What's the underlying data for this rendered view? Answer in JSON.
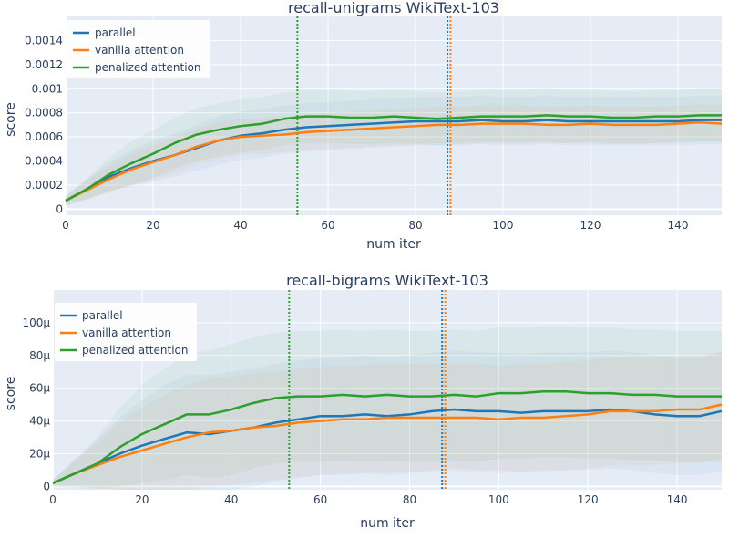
{
  "chart_data": [
    {
      "type": "line",
      "title": "recall-unigrams WikiText-103",
      "xlabel": "num iter",
      "ylabel": "score",
      "xlim": [
        0,
        150
      ],
      "ylim": [
        -5e-05,
        0.0016
      ],
      "xticks": [
        0,
        20,
        40,
        60,
        80,
        100,
        120,
        140
      ],
      "xtick_labels": [
        "0",
        "20",
        "40",
        "60",
        "80",
        "100",
        "120",
        "140"
      ],
      "yticks": [
        0,
        0.0002,
        0.0004,
        0.0006,
        0.0008,
        0.001,
        0.0012,
        0.0014
      ],
      "ytick_labels": [
        "0",
        "0.0002",
        "0.0004",
        "0.0006",
        "0.0008",
        "0.001",
        "0.0012",
        "0.0014"
      ],
      "grid": true,
      "legend": {
        "position": "top-left",
        "entries": [
          "parallel",
          "vanilla attention",
          "penalized attention"
        ]
      },
      "series": [
        {
          "name": "parallel",
          "color": "#1f77b4",
          "x": [
            0,
            5,
            10,
            15,
            20,
            25,
            30,
            35,
            40,
            45,
            50,
            55,
            60,
            65,
            70,
            75,
            80,
            85,
            90,
            95,
            100,
            105,
            110,
            115,
            120,
            125,
            130,
            135,
            140,
            145,
            150
          ],
          "y": [
            7e-05,
            0.00017,
            0.00027,
            0.00034,
            0.0004,
            0.00045,
            0.00051,
            0.00057,
            0.00061,
            0.00063,
            0.00066,
            0.00068,
            0.00069,
            0.0007,
            0.00071,
            0.00072,
            0.00073,
            0.00073,
            0.00073,
            0.00074,
            0.00073,
            0.00073,
            0.00074,
            0.00073,
            0.00073,
            0.00073,
            0.00073,
            0.00073,
            0.00073,
            0.00074,
            0.00074
          ],
          "band": [
            4e-05,
            8e-05,
            0.00012,
            0.00015,
            0.00017,
            0.00018,
            0.00019,
            0.0002,
            0.0002,
            0.0002,
            0.0002,
            0.0002,
            0.0002,
            0.0002,
            0.0002,
            0.0002,
            0.0002,
            0.0002,
            0.0002,
            0.0002,
            0.0002,
            0.0002,
            0.0002,
            0.0002,
            0.0002,
            0.0002,
            0.0002,
            0.0002,
            0.0002,
            0.0002,
            0.0002
          ]
        },
        {
          "name": "vanilla attention",
          "color": "#ff7f0e",
          "x": [
            0,
            5,
            10,
            15,
            20,
            25,
            30,
            35,
            40,
            45,
            50,
            55,
            60,
            65,
            70,
            75,
            80,
            85,
            90,
            95,
            100,
            105,
            110,
            115,
            120,
            125,
            130,
            135,
            140,
            145,
            150
          ],
          "y": [
            7e-05,
            0.00016,
            0.00025,
            0.00033,
            0.00039,
            0.00045,
            0.00052,
            0.00057,
            0.0006,
            0.00061,
            0.00062,
            0.00064,
            0.00065,
            0.00066,
            0.00067,
            0.00068,
            0.00069,
            0.0007,
            0.0007,
            0.00071,
            0.00071,
            0.00071,
            0.0007,
            0.0007,
            0.00071,
            0.0007,
            0.0007,
            0.0007,
            0.00071,
            0.00072,
            0.00071
          ],
          "band": [
            4e-05,
            8e-05,
            0.00011,
            0.00013,
            0.00014,
            0.00015,
            0.00015,
            0.00015,
            0.00015,
            0.00015,
            0.00015,
            0.00015,
            0.00015,
            0.00015,
            0.00015,
            0.00015,
            0.00015,
            0.00015,
            0.00015,
            0.00015,
            0.00015,
            0.00015,
            0.00015,
            0.00015,
            0.00015,
            0.00015,
            0.00015,
            0.00015,
            0.00015,
            0.00015,
            0.00015
          ]
        },
        {
          "name": "penalized attention",
          "color": "#2ca02c",
          "x": [
            0,
            5,
            10,
            15,
            20,
            25,
            30,
            35,
            40,
            45,
            50,
            55,
            60,
            65,
            70,
            75,
            80,
            85,
            90,
            95,
            100,
            105,
            110,
            115,
            120,
            125,
            130,
            135,
            140,
            145,
            150
          ],
          "y": [
            7e-05,
            0.00017,
            0.00029,
            0.00038,
            0.00046,
            0.00055,
            0.00062,
            0.00066,
            0.00069,
            0.00071,
            0.00075,
            0.00077,
            0.00077,
            0.00076,
            0.00076,
            0.00077,
            0.00076,
            0.00075,
            0.00076,
            0.00077,
            0.00077,
            0.00077,
            0.00078,
            0.00077,
            0.00077,
            0.00076,
            0.00076,
            0.00077,
            0.00077,
            0.00078,
            0.00078
          ],
          "band": [
            4e-05,
            9e-05,
            0.00014,
            0.00018,
            0.0002,
            0.00021,
            0.00022,
            0.00022,
            0.00022,
            0.00022,
            0.00022,
            0.00022,
            0.00022,
            0.00022,
            0.00022,
            0.00022,
            0.00022,
            0.00022,
            0.00022,
            0.00022,
            0.00022,
            0.00022,
            0.00022,
            0.00022,
            0.00022,
            0.00022,
            0.00022,
            0.00022,
            0.00022,
            0.00022,
            0.00022
          ]
        }
      ],
      "vlines": [
        {
          "x": 53,
          "color": "#2ca02c"
        },
        {
          "x": 87.3,
          "color": "#1f77b4"
        },
        {
          "x": 88,
          "color": "#ff7f0e"
        }
      ]
    },
    {
      "type": "line",
      "title": "recall-bigrams WikiText-103",
      "xlabel": "num iter",
      "ylabel": "score",
      "xlim": [
        0,
        150
      ],
      "ylim": [
        -2e-06,
        0.00012
      ],
      "xticks": [
        0,
        20,
        40,
        60,
        80,
        100,
        120,
        140
      ],
      "xtick_labels": [
        "0",
        "20",
        "40",
        "60",
        "80",
        "100",
        "120",
        "140"
      ],
      "yticks": [
        0,
        2e-05,
        4e-05,
        6e-05,
        8e-05,
        0.0001
      ],
      "ytick_labels": [
        "0",
        "20μ",
        "40μ",
        "60μ",
        "80μ",
        "100μ"
      ],
      "grid": true,
      "legend": {
        "position": "top-left",
        "entries": [
          "parallel",
          "vanilla attention",
          "penalized attention"
        ]
      },
      "series": [
        {
          "name": "parallel",
          "color": "#1f77b4",
          "x": [
            0,
            5,
            10,
            15,
            20,
            25,
            30,
            35,
            40,
            45,
            50,
            55,
            60,
            65,
            70,
            75,
            80,
            85,
            90,
            95,
            100,
            105,
            110,
            115,
            120,
            125,
            130,
            135,
            140,
            145,
            150
          ],
          "y": [
            2e-06,
            8e-06,
            1.4e-05,
            2e-05,
            2.5e-05,
            2.9e-05,
            3.3e-05,
            3.2e-05,
            3.4e-05,
            3.6e-05,
            3.9e-05,
            4.1e-05,
            4.3e-05,
            4.3e-05,
            4.4e-05,
            4.3e-05,
            4.4e-05,
            4.6e-05,
            4.7e-05,
            4.6e-05,
            4.6e-05,
            4.5e-05,
            4.6e-05,
            4.6e-05,
            4.6e-05,
            4.7e-05,
            4.6e-05,
            4.4e-05,
            4.3e-05,
            4.3e-05,
            4.6e-05
          ],
          "band": [
            2e-06,
            8e-06,
            1.5e-05,
            2.2e-05,
            2.8e-05,
            3.3e-05,
            3.5e-05,
            3.6e-05,
            3.6e-05,
            3.6e-05,
            3.6e-05,
            3.6e-05,
            3.6e-05,
            3.6e-05,
            3.6e-05,
            3.6e-05,
            3.6e-05,
            3.6e-05,
            3.6e-05,
            3.6e-05,
            3.6e-05,
            3.6e-05,
            3.6e-05,
            3.6e-05,
            3.6e-05,
            3.6e-05,
            3.6e-05,
            3.6e-05,
            3.6e-05,
            3.6e-05,
            3.6e-05
          ]
        },
        {
          "name": "vanilla attention",
          "color": "#ff7f0e",
          "x": [
            0,
            5,
            10,
            15,
            20,
            25,
            30,
            35,
            40,
            45,
            50,
            55,
            60,
            65,
            70,
            75,
            80,
            85,
            90,
            95,
            100,
            105,
            110,
            115,
            120,
            125,
            130,
            135,
            140,
            145,
            150
          ],
          "y": [
            2e-06,
            8e-06,
            1.3e-05,
            1.8e-05,
            2.2e-05,
            2.6e-05,
            3e-05,
            3.3e-05,
            3.4e-05,
            3.6e-05,
            3.7e-05,
            3.9e-05,
            4e-05,
            4.1e-05,
            4.1e-05,
            4.2e-05,
            4.2e-05,
            4.2e-05,
            4.2e-05,
            4.2e-05,
            4.1e-05,
            4.2e-05,
            4.2e-05,
            4.3e-05,
            4.4e-05,
            4.6e-05,
            4.6e-05,
            4.6e-05,
            4.7e-05,
            4.7e-05,
            5e-05
          ],
          "band": [
            2e-06,
            8e-06,
            1.4e-05,
            2.1e-05,
            2.6e-05,
            3e-05,
            3.2e-05,
            3.3e-05,
            3.3e-05,
            3.3e-05,
            3.3e-05,
            3.3e-05,
            3.3e-05,
            3.3e-05,
            3.3e-05,
            3.3e-05,
            3.3e-05,
            3.3e-05,
            3.3e-05,
            3.3e-05,
            3.3e-05,
            3.3e-05,
            3.3e-05,
            3.3e-05,
            3.3e-05,
            3.3e-05,
            3.3e-05,
            3.3e-05,
            3.3e-05,
            3.3e-05,
            3.3e-05
          ]
        },
        {
          "name": "penalized attention",
          "color": "#2ca02c",
          "x": [
            0,
            5,
            10,
            15,
            20,
            25,
            30,
            35,
            40,
            45,
            50,
            55,
            60,
            65,
            70,
            75,
            80,
            85,
            90,
            95,
            100,
            105,
            110,
            115,
            120,
            125,
            130,
            135,
            140,
            145,
            150
          ],
          "y": [
            2e-06,
            8e-06,
            1.4e-05,
            2.4e-05,
            3.2e-05,
            3.8e-05,
            4.4e-05,
            4.4e-05,
            4.7e-05,
            5.1e-05,
            5.4e-05,
            5.5e-05,
            5.5e-05,
            5.6e-05,
            5.5e-05,
            5.6e-05,
            5.5e-05,
            5.5e-05,
            5.6e-05,
            5.5e-05,
            5.7e-05,
            5.7e-05,
            5.8e-05,
            5.8e-05,
            5.7e-05,
            5.7e-05,
            5.6e-05,
            5.6e-05,
            5.5e-05,
            5.5e-05,
            5.5e-05
          ],
          "band": [
            2e-06,
            9e-06,
            1.6e-05,
            2.4e-05,
            3e-05,
            3.4e-05,
            3.7e-05,
            3.9e-05,
            4e-05,
            4e-05,
            4e-05,
            4e-05,
            4e-05,
            4e-05,
            4e-05,
            4e-05,
            4e-05,
            4e-05,
            4e-05,
            4e-05,
            4e-05,
            4e-05,
            4e-05,
            4e-05,
            4e-05,
            4e-05,
            4e-05,
            4e-05,
            4e-05,
            4e-05,
            4e-05
          ]
        }
      ],
      "vlines": [
        {
          "x": 53,
          "color": "#2ca02c"
        },
        {
          "x": 87.3,
          "color": "#1f77b4"
        },
        {
          "x": 88,
          "color": "#ff7f0e"
        }
      ]
    }
  ]
}
